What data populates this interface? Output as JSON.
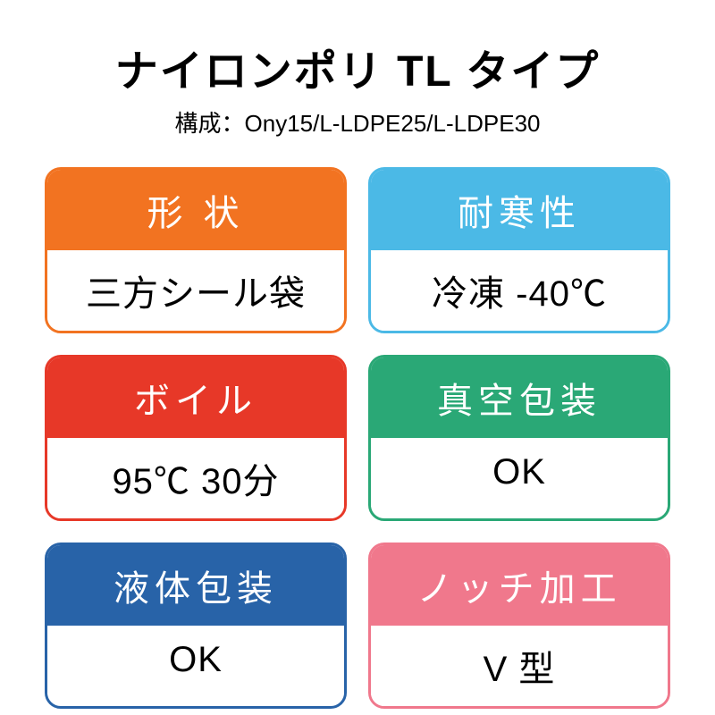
{
  "title": "ナイロンポリ TL タイプ",
  "subtitle": "構成：Ony15/L-LDPE25/L-LDPE30",
  "cards": [
    {
      "header": "形 状",
      "body": "三方シール袋",
      "color": "#f27321"
    },
    {
      "header": "耐寒性",
      "body": "冷凍 -40℃",
      "color": "#4bb9e6"
    },
    {
      "header": "ボイル",
      "body": "95℃ 30分",
      "color": "#e73828"
    },
    {
      "header": "真空包装",
      "body": "OK",
      "color": "#2aa876"
    },
    {
      "header": "液体包装",
      "body": "OK",
      "color": "#2863a8"
    },
    {
      "header": "ノッチ加工",
      "body": "V 型",
      "color": "#f0788c"
    }
  ],
  "styling": {
    "title_fontsize": 48,
    "subtitle_fontsize": 26,
    "header_fontsize": 40,
    "body_fontsize": 40,
    "background_color": "#ffffff",
    "text_color": "#000000",
    "header_text_color": "#ffffff",
    "border_radius": 18,
    "border_width": 3,
    "grid_gap": 24
  }
}
